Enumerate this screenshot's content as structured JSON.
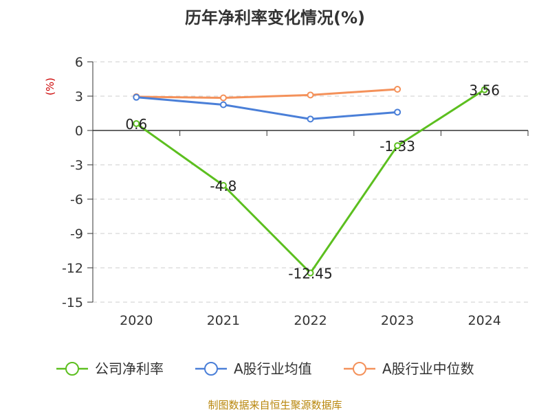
{
  "chart_data": {
    "type": "line",
    "title": "历年净利率变化情况(%)",
    "ylabel": "(%)",
    "categories": [
      "2020",
      "2021",
      "2022",
      "2023",
      "2024"
    ],
    "ylim": [
      -15,
      6
    ],
    "yticks": [
      6,
      3,
      0,
      -3,
      -6,
      -9,
      -12,
      -15
    ],
    "grid": true,
    "legend": "bottom",
    "series": [
      {
        "name": "公司净利率",
        "color": "#5cbf1f",
        "values": [
          0.6,
          -4.8,
          -12.45,
          -1.33,
          3.56
        ],
        "labels": [
          "0.6",
          "-4.8",
          "-12.45",
          "-1.33",
          "3.56"
        ]
      },
      {
        "name": "A股行业均值",
        "color": "#4a7fd8",
        "values": [
          2.9,
          2.25,
          1.0,
          1.6,
          null
        ]
      },
      {
        "name": "A股行业中位数",
        "color": "#f4915a",
        "values": [
          2.95,
          2.85,
          3.1,
          3.6,
          null
        ]
      }
    ]
  },
  "source": "制图数据来自恒生聚源数据库"
}
